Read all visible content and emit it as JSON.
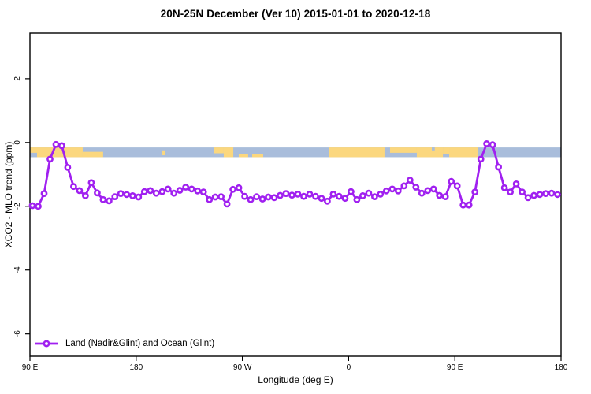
{
  "title": "20N-25N December (Ver 10)   2015-01-01 to 2020-12-18",
  "chart_data": {
    "type": "line",
    "title": "20N-25N December (Ver 10)   2015-01-01 to 2020-12-18",
    "xlabel": "Longitude (deg E)",
    "ylabel": "XCO2 - MLO trend (ppm)",
    "xlim": [
      90,
      540
    ],
    "ylim": [
      -6.7,
      3.43
    ],
    "grid": false,
    "axis_color": "#000000",
    "x_ticks": [
      {
        "x": 90,
        "label": "90 E"
      },
      {
        "x": 180,
        "label": "180"
      },
      {
        "x": 270,
        "label": "90 W"
      },
      {
        "x": 360,
        "label": "0"
      },
      {
        "x": 450,
        "label": "90 E"
      },
      {
        "x": 540,
        "label": "180"
      }
    ],
    "y_ticks": [
      {
        "y": 2,
        "label": "2"
      },
      {
        "y": 0,
        "label": "0"
      },
      {
        "y": -2,
        "label": "-2"
      },
      {
        "y": -4,
        "label": "-4"
      },
      {
        "y": -6,
        "label": "-6"
      }
    ],
    "legend": {
      "position": "bottom-left",
      "entries": [
        {
          "label": "Land (Nadir&Glint) and Ocean (Glint)",
          "color": "#A020F0",
          "marker": "line-open-circle"
        }
      ]
    },
    "series": [
      {
        "name": "Land (Nadir&Glint) and Ocean (Glint)",
        "color": "#A020F0",
        "marker_fill": "#FFFFFF",
        "x": [
          92,
          97,
          102,
          107,
          112,
          117,
          122,
          127,
          132,
          137,
          142,
          147,
          152,
          157,
          162,
          167,
          172,
          177,
          182,
          187,
          192,
          197,
          202,
          207,
          212,
          217,
          222,
          227,
          232,
          237,
          242,
          247,
          252,
          257,
          262,
          267,
          272,
          277,
          282,
          287,
          292,
          297,
          302,
          307,
          312,
          317,
          322,
          327,
          332,
          337,
          342,
          347,
          352,
          357,
          362,
          367,
          372,
          377,
          382,
          387,
          392,
          397,
          402,
          407,
          412,
          417,
          422,
          427,
          432,
          437,
          442,
          447,
          452,
          457,
          462,
          467,
          472,
          477,
          482,
          487,
          492,
          497,
          502,
          507,
          512,
          517,
          522,
          527,
          532,
          537
        ],
        "y": [
          -1.98,
          -2.0,
          -1.6,
          -0.52,
          -0.06,
          -0.1,
          -0.78,
          -1.38,
          -1.51,
          -1.67,
          -1.26,
          -1.58,
          -1.79,
          -1.83,
          -1.7,
          -1.6,
          -1.63,
          -1.67,
          -1.71,
          -1.54,
          -1.51,
          -1.59,
          -1.54,
          -1.46,
          -1.59,
          -1.5,
          -1.4,
          -1.46,
          -1.52,
          -1.55,
          -1.79,
          -1.71,
          -1.7,
          -1.93,
          -1.47,
          -1.42,
          -1.69,
          -1.79,
          -1.7,
          -1.77,
          -1.71,
          -1.73,
          -1.66,
          -1.6,
          -1.65,
          -1.62,
          -1.69,
          -1.62,
          -1.69,
          -1.75,
          -1.84,
          -1.62,
          -1.69,
          -1.75,
          -1.54,
          -1.79,
          -1.67,
          -1.59,
          -1.7,
          -1.62,
          -1.52,
          -1.46,
          -1.52,
          -1.36,
          -1.18,
          -1.4,
          -1.59,
          -1.51,
          -1.46,
          -1.66,
          -1.7,
          -1.22,
          -1.36,
          -1.96,
          -1.96,
          -1.55,
          -0.52,
          -0.04,
          -0.07,
          -0.77,
          -1.42,
          -1.55,
          -1.3,
          -1.55,
          -1.73,
          -1.66,
          -1.63,
          -1.6,
          -1.59,
          -1.63
        ]
      }
    ],
    "map_band": {
      "description": "land/ocean strip along 20N-25N latitude",
      "y_top_value": -0.155,
      "y_bottom_value": -0.46,
      "ocean_color": "#A9BDDB",
      "land_color": "#FBD77E",
      "land_patches": [
        {
          "x0": 90,
          "x1": 134.7,
          "t": 0,
          "b": 1
        },
        {
          "x0": 134.7,
          "x1": 152,
          "t": 0.45,
          "b": 1
        },
        {
          "x0": 202.2,
          "x1": 204.4,
          "t": 0.3,
          "b": 0.8
        },
        {
          "x0": 246.2,
          "x1": 254.2,
          "t": 0,
          "b": 0.6
        },
        {
          "x0": 254.2,
          "x1": 262.3,
          "t": 0,
          "b": 1
        },
        {
          "x0": 266.9,
          "x1": 274.9,
          "t": 0.7,
          "b": 1
        },
        {
          "x0": 278.3,
          "x1": 287.6,
          "t": 0.7,
          "b": 1
        },
        {
          "x0": 343.7,
          "x1": 390.4,
          "t": 0,
          "b": 1
        },
        {
          "x0": 395.1,
          "x1": 417.8,
          "t": 0,
          "b": 0.55
        },
        {
          "x0": 417.8,
          "x1": 439.9,
          "t": 0,
          "b": 1
        },
        {
          "x0": 439.9,
          "x1": 445.2,
          "t": 0,
          "b": 0.65
        },
        {
          "x0": 445.2,
          "x1": 469.9,
          "t": 0,
          "b": 1
        }
      ],
      "ocean_patches": [
        {
          "x0": 90,
          "x1": 96,
          "t": 0.55,
          "b": 1
        },
        {
          "x0": 430.5,
          "x1": 433,
          "t": 0,
          "b": 0.3
        }
      ]
    }
  }
}
